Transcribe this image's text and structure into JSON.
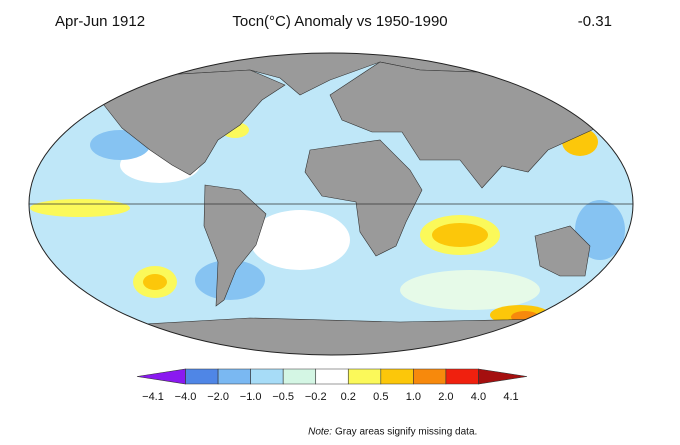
{
  "header": {
    "period": "Apr-Jun 1912",
    "title": "Tocn(°C) Anomaly vs 1950-1990",
    "mean": "-0.31"
  },
  "legend": {
    "labels": [
      "−4.1",
      "−4.0",
      "−2.0",
      "−1.0",
      "−0.5",
      "−0.2",
      "0.2",
      "0.5",
      "1.0",
      "2.0",
      "4.0",
      "4.1"
    ],
    "colors": [
      "#8a19f0",
      "#4f86e6",
      "#7ab8f2",
      "#a7dcf7",
      "#d4f6e4",
      "#ffffff",
      "#fbf95a",
      "#fcc70a",
      "#f7890c",
      "#f0200e",
      "#a50f0f"
    ]
  },
  "note": {
    "lead": "Note:",
    "text": "Gray areas signify missing data."
  }
}
